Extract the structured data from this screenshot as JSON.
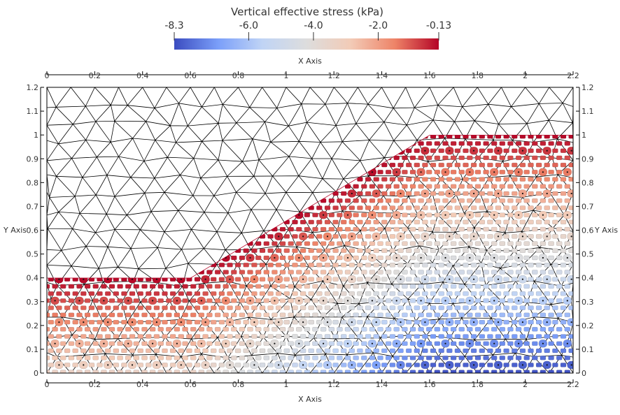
{
  "chart_data": {
    "type": "scatter",
    "title": "",
    "colorbar": {
      "title": "Vertical effective stress (kPa)",
      "range": [
        -8.3,
        -0.13
      ],
      "tick_values": [
        -8.3,
        -6.0,
        -4.0,
        -2.0,
        -0.13
      ],
      "tick_labels": [
        "-8.3",
        "-6.0",
        "-4.0",
        "-2.0",
        "-0.13"
      ],
      "colormap": [
        "#3b4cc0",
        "#7b9ff9",
        "#c0d4f5",
        "#dddddd",
        "#f2cbb7",
        "#ee8468",
        "#b40426"
      ]
    },
    "xaxis": {
      "label_top": "X Axis",
      "label_bottom": "X Axis",
      "range": [
        0,
        2.2
      ],
      "ticks": [
        0,
        0.2,
        0.4,
        0.6,
        0.8,
        1,
        1.2,
        1.4,
        1.6,
        1.8,
        2,
        2.2
      ],
      "tick_labels": [
        "0",
        "0.2",
        "0.4",
        "0.6",
        "0.8",
        "1",
        "1.2",
        "1.4",
        "1.6",
        "1.8",
        "2",
        "2.2"
      ]
    },
    "yaxis": {
      "label_left": "Y Axis",
      "label_right": "Y Axis",
      "range": [
        0,
        1.2
      ],
      "ticks": [
        0,
        0.1,
        0.2,
        0.3,
        0.4,
        0.5,
        0.6,
        0.7,
        0.8,
        0.9,
        1,
        1.1,
        1.2
      ],
      "tick_labels": [
        "0",
        "0.1",
        "0.2",
        "0.3",
        "0.4",
        "0.5",
        "0.6",
        "0.7",
        "0.8",
        "0.9",
        "1",
        "1.1",
        "1.2"
      ]
    },
    "soil_boundary": {
      "x": [
        0,
        0.6,
        1.6,
        2.2,
        2.2,
        0
      ],
      "y": [
        0.4,
        0.4,
        1.0,
        1.0,
        0,
        0
      ]
    },
    "domain": {
      "x": [
        0,
        2.2
      ],
      "y": [
        0,
        1.2
      ]
    },
    "grid": false,
    "colors": {
      "mesh_line": "#000000",
      "marker_outline": "#222222"
    }
  }
}
